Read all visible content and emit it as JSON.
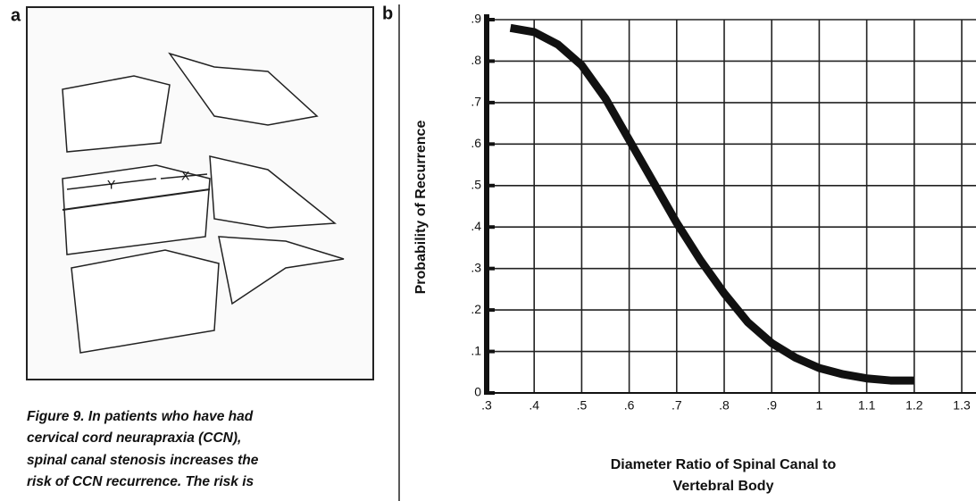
{
  "panel_a": {
    "label": "a",
    "dimension_x": "X",
    "dimension_y": "Y",
    "caption": [
      "Figure 9. In patients who have had",
      "cervical cord neurapraxia (CCN),",
      "spinal canal stenosis increases the",
      "risk of CCN recurrence. The risk is"
    ]
  },
  "panel_b": {
    "label": "b"
  },
  "chart_data": {
    "type": "line",
    "ylabel": "Probability of Recurrence",
    "xlabel": [
      "Diameter Ratio of Spinal Canal to",
      "Vertebral Body"
    ],
    "x": [
      0.35,
      0.4,
      0.45,
      0.5,
      0.55,
      0.6,
      0.65,
      0.7,
      0.75,
      0.8,
      0.85,
      0.9,
      0.95,
      1.0,
      1.05,
      1.1,
      1.15,
      1.2
    ],
    "series": [
      {
        "color": "#111111",
        "values": [
          0.88,
          0.87,
          0.84,
          0.79,
          0.71,
          0.61,
          0.51,
          0.41,
          0.32,
          0.24,
          0.17,
          0.12,
          0.085,
          0.06,
          0.045,
          0.035,
          0.03,
          0.03
        ]
      }
    ],
    "xlim": [
      0.3,
      1.33
    ],
    "ylim": [
      0,
      0.9
    ],
    "xticks": [
      {
        "value": 0.3,
        "label": ".3"
      },
      {
        "value": 0.4,
        "label": ".4"
      },
      {
        "value": 0.5,
        "label": ".5"
      },
      {
        "value": 0.6,
        "label": ".6"
      },
      {
        "value": 0.7,
        "label": ".7"
      },
      {
        "value": 0.8,
        "label": ".8"
      },
      {
        "value": 0.9,
        "label": ".9"
      },
      1,
      1.1,
      1.2,
      1.3
    ],
    "yticks": [
      0,
      {
        "value": 0.1,
        "label": ".1"
      },
      {
        "value": 0.2,
        "label": ".2"
      },
      {
        "value": 0.3,
        "label": ".3"
      },
      {
        "value": 0.4,
        "label": ".4"
      },
      {
        "value": 0.5,
        "label": ".5"
      },
      {
        "value": 0.6,
        "label": ".6"
      },
      {
        "value": 0.7,
        "label": ".7"
      },
      {
        "value": 0.8,
        "label": ".8"
      },
      {
        "value": 0.9,
        "label": ".9"
      }
    ],
    "grid": true
  }
}
